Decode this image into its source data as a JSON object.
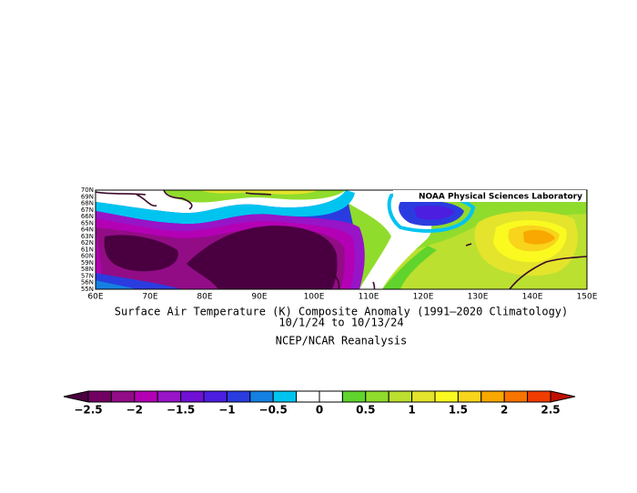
{
  "map": {
    "credit": "NOAA Physical Sciences Laboratory",
    "title": "Surface Air Temperature (K) Composite Anomaly (1991–2020 Climatology)",
    "dates": "10/1/24  to 10/13/24",
    "source": "NCEP/NCAR Reanalysis",
    "lat_labels": [
      "70N",
      "69N",
      "68N",
      "67N",
      "66N",
      "65N",
      "64N",
      "63N",
      "62N",
      "61N",
      "60N",
      "59N",
      "58N",
      "57N",
      "56N",
      "55N"
    ],
    "lon_labels": [
      "60E",
      "70E",
      "80E",
      "90E",
      "100E",
      "110E",
      "120E",
      "130E",
      "140E",
      "150E"
    ]
  },
  "colorbar": {
    "labels": [
      "−2.5",
      "−2",
      "−1.5",
      "−1",
      "−0.5",
      "0",
      "0.5",
      "1",
      "1.5",
      "2",
      "2.5"
    ],
    "under_color": "#4a0040",
    "colors": [
      "#720062",
      "#920c86",
      "#b400b4",
      "#9814c8",
      "#7010d4",
      "#4c1ee0",
      "#2a3ce0",
      "#1480e0",
      "#00c4f0",
      "#ffffff",
      "#ffffff",
      "#60d42c",
      "#90dc2c",
      "#bce030",
      "#e4e42c",
      "#fafa20",
      "#f8d41c",
      "#f8a800",
      "#f87400",
      "#f03c00"
    ],
    "over_color": "#c01000"
  }
}
